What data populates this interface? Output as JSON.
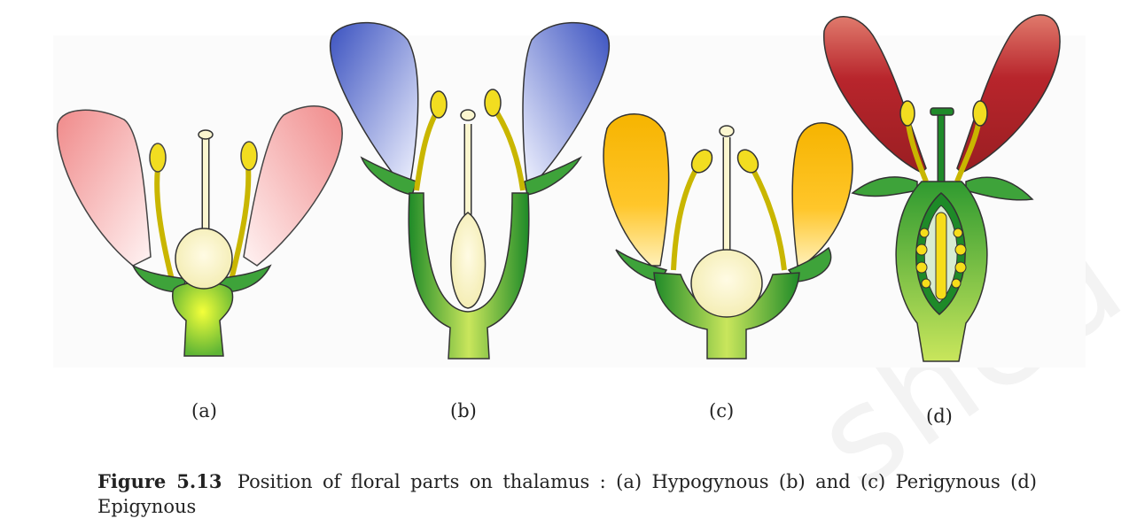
{
  "panels": [
    {
      "id": "a",
      "label": "(a)"
    },
    {
      "id": "b",
      "label": "(b)"
    },
    {
      "id": "c",
      "label": "(c)"
    },
    {
      "id": "d",
      "label": "(d)"
    }
  ],
  "caption": {
    "figure_number": "Figure 5.13",
    "text": "Position of floral parts on thalamus : (a) Hypogynous (b)  and (c) Perigynous  (d) Epigynous"
  },
  "watermark_text": "shed",
  "colors": {
    "green_dark": "#1f8a2a",
    "green_light": "#c6e35a",
    "ovary_cream": "#fbf6cf",
    "petal_pink": "#f0a0a0",
    "petal_blue": "#4c63c8",
    "petal_yellow": "#f6b800",
    "petal_red": "#b8252c",
    "anther_yellow": "#f2dd20"
  }
}
